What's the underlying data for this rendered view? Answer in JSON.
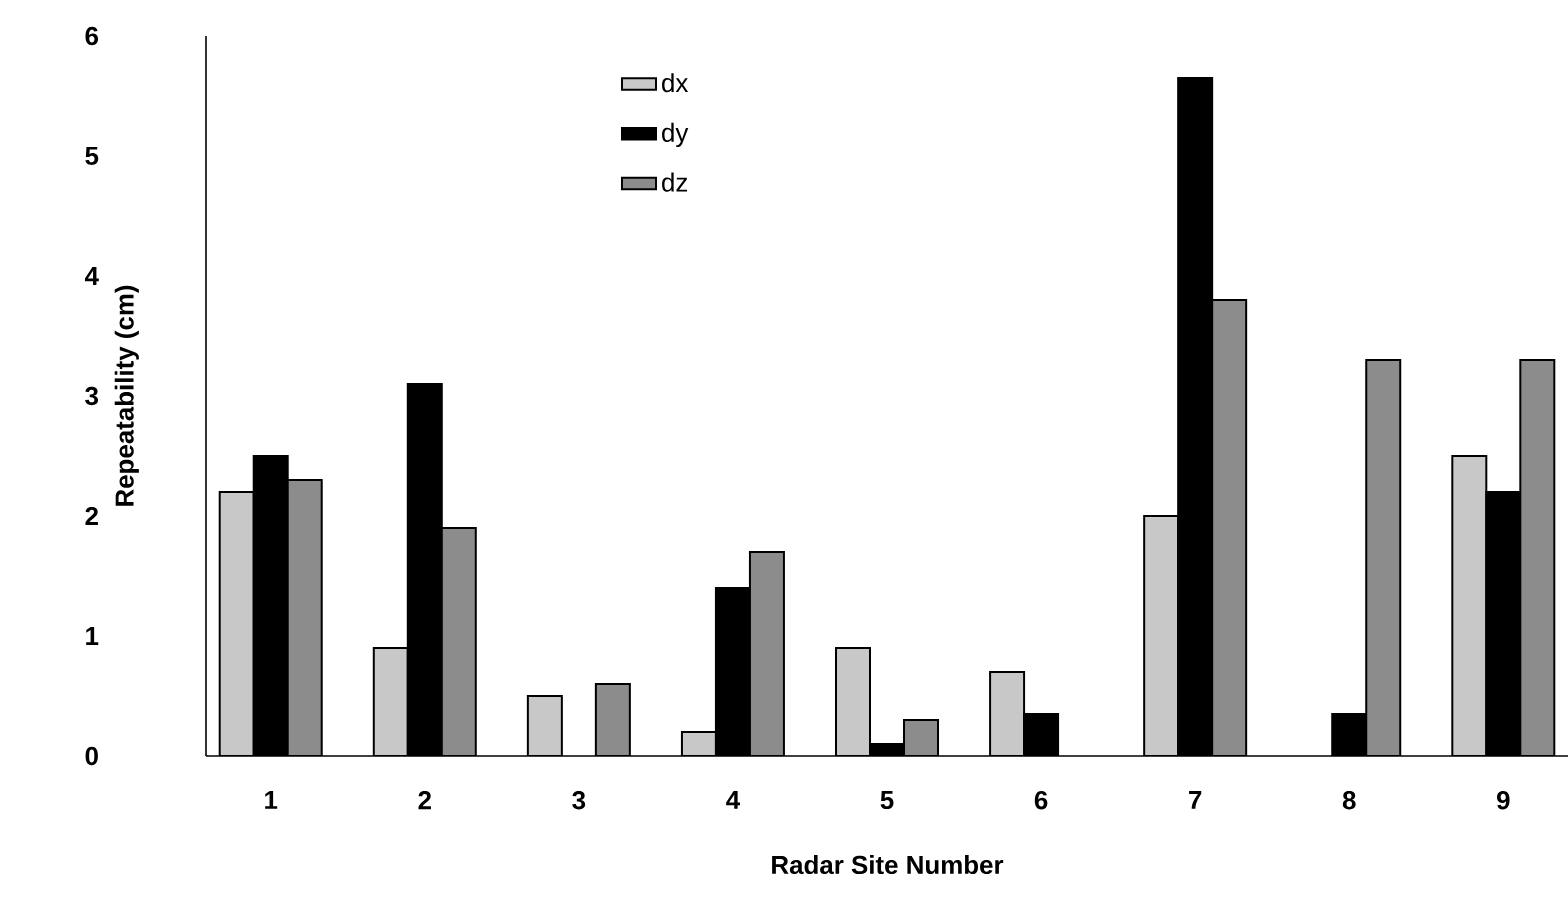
{
  "chart_data": {
    "type": "bar",
    "xlabel": "Radar Site Number",
    "ylabel": "Repeatability (cm)",
    "categories": [
      "1",
      "2",
      "3",
      "4",
      "5",
      "6",
      "7",
      "8",
      "9"
    ],
    "series": [
      {
        "name": "dx",
        "color": "#c8c8c8",
        "values": [
          2.2,
          0.9,
          0.5,
          0.2,
          0.9,
          0.7,
          2.0,
          null,
          2.5
        ]
      },
      {
        "name": "dy",
        "color": "#000000",
        "values": [
          2.5,
          3.1,
          null,
          1.4,
          0.1,
          0.35,
          5.65,
          0.35,
          2.2
        ]
      },
      {
        "name": "dz",
        "color": "#8c8c8c",
        "values": [
          2.3,
          1.9,
          0.6,
          1.7,
          0.3,
          null,
          3.8,
          3.3,
          3.3
        ]
      }
    ],
    "ylim": [
      0,
      6
    ],
    "yticks": [
      0,
      1,
      2,
      3,
      4,
      5,
      6
    ],
    "legend": "top left"
  }
}
